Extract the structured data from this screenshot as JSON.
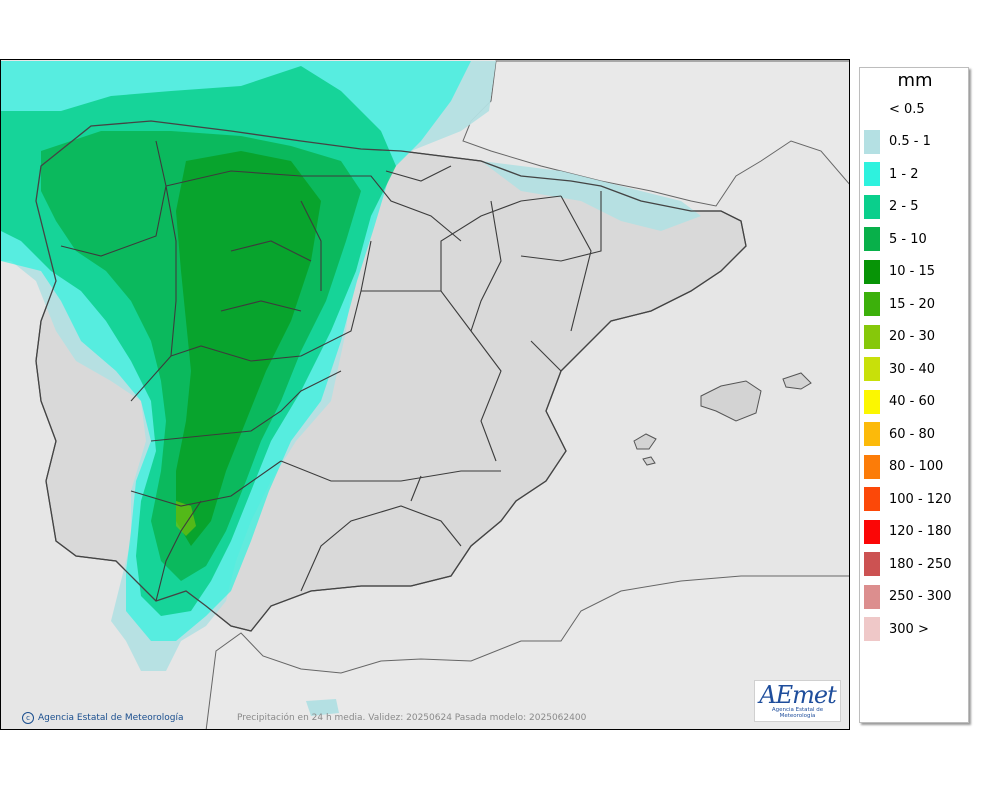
{
  "legend": {
    "unit": "mm",
    "items": [
      {
        "label": "< 0.5",
        "color": "#ffffff"
      },
      {
        "label": "0.5 - 1",
        "color": "#b4e0e3"
      },
      {
        "label": "1 - 2",
        "color": "#2ef2de"
      },
      {
        "label": "2 - 5",
        "color": "#0acf8c"
      },
      {
        "label": "5 - 10",
        "color": "#08b04a"
      },
      {
        "label": "10 - 15",
        "color": "#079406"
      },
      {
        "label": "15 - 20",
        "color": "#3cb00b"
      },
      {
        "label": "20 - 30",
        "color": "#86c80a"
      },
      {
        "label": "30 - 40",
        "color": "#c8e00a"
      },
      {
        "label": "40 - 60",
        "color": "#fcf700"
      },
      {
        "label": "60 - 80",
        "color": "#fcba0a"
      },
      {
        "label": "80 - 100",
        "color": "#fc7c08"
      },
      {
        "label": "100 - 120",
        "color": "#fc4808"
      },
      {
        "label": "120 - 180",
        "color": "#fb0606"
      },
      {
        "label": "180 - 250",
        "color": "#cc5252"
      },
      {
        "label": "250 - 300",
        "color": "#dc8e8e"
      },
      {
        "label": "300 >",
        "color": "#efc8c8"
      }
    ]
  },
  "credit": {
    "text": "Agencia Estatal de Meteorología",
    "icon": "copyright-icon"
  },
  "caption": "Precipitación en 24 h media. Validez: 20250624 Pasada modelo: 2025062400",
  "logo": {
    "mark": "AEmet",
    "subtitle": "Agencia Estatal de Meteorología"
  },
  "colors": {
    "sea": "#e6e6e6",
    "land": "#d8d8d8",
    "border": "#3c3c3c",
    "coast": "#555555"
  }
}
